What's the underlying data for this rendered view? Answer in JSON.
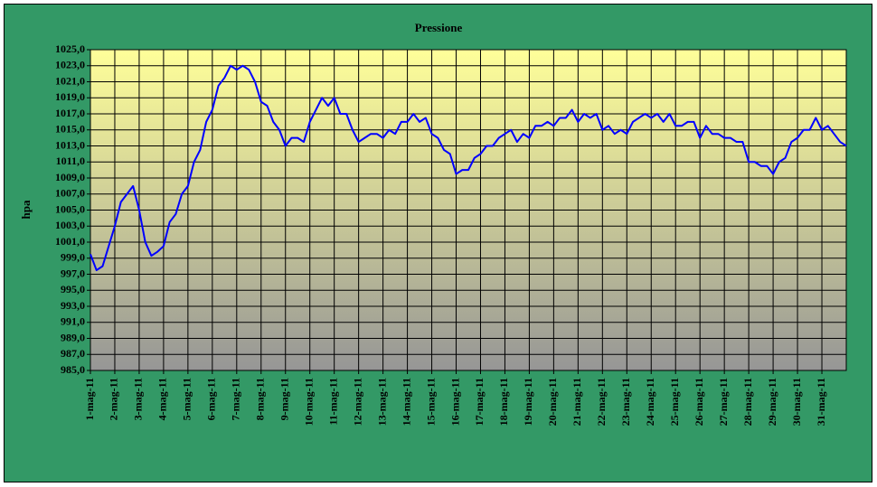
{
  "chart_data": {
    "type": "line",
    "title": "Pressione",
    "y_label": "hpa",
    "x": [
      0,
      0.25,
      0.5,
      0.75,
      1,
      1.25,
      1.5,
      1.75,
      2,
      2.25,
      2.5,
      2.75,
      3,
      3.25,
      3.5,
      3.75,
      4,
      4.25,
      4.5,
      4.75,
      5,
      5.25,
      5.5,
      5.75,
      6,
      6.25,
      6.5,
      6.75,
      7,
      7.25,
      7.5,
      7.75,
      8,
      8.25,
      8.5,
      8.75,
      9,
      9.25,
      9.5,
      9.75,
      10,
      10.25,
      10.5,
      10.75,
      11,
      11.25,
      11.5,
      11.75,
      12,
      12.25,
      12.5,
      12.75,
      13,
      13.25,
      13.5,
      13.75,
      14,
      14.25,
      14.5,
      14.75,
      15,
      15.25,
      15.5,
      15.75,
      16,
      16.25,
      16.5,
      16.75,
      17,
      17.25,
      17.5,
      17.75,
      18,
      18.25,
      18.5,
      18.75,
      19,
      19.25,
      19.5,
      19.75,
      20,
      20.25,
      20.5,
      20.75,
      21,
      21.25,
      21.5,
      21.75,
      22,
      22.25,
      22.5,
      22.75,
      23,
      23.25,
      23.5,
      23.75,
      24,
      24.25,
      24.5,
      24.75,
      25,
      25.25,
      25.5,
      25.75,
      26,
      26.25,
      26.5,
      26.75,
      27,
      27.25,
      27.5,
      27.75,
      28,
      28.25,
      28.5,
      28.75,
      29,
      29.25,
      29.5,
      29.75,
      30,
      30.25,
      30.5,
      30.75,
      31
    ],
    "values": [
      999.5,
      997.5,
      998,
      1000.5,
      1003,
      1006,
      1007,
      1008,
      1005,
      1001,
      999.3,
      999.8,
      1000.5,
      1003.5,
      1004.5,
      1007,
      1008,
      1011,
      1012.5,
      1016,
      1017.5,
      1020.5,
      1021.5,
      1023,
      1022.5,
      1023,
      1022.5,
      1021,
      1018.5,
      1018,
      1016,
      1015,
      1013,
      1014,
      1014,
      1013.5,
      1016,
      1017.5,
      1019,
      1018,
      1019,
      1017,
      1017,
      1015,
      1013.5,
      1014,
      1014.5,
      1014.5,
      1014,
      1015,
      1014.5,
      1016,
      1016,
      1017,
      1016,
      1016.5,
      1014.5,
      1014,
      1012.5,
      1012,
      1009.5,
      1010,
      1010,
      1011.5,
      1012,
      1013,
      1013,
      1014,
      1014.5,
      1015,
      1013.5,
      1014.5,
      1014,
      1015.5,
      1015.5,
      1016,
      1015.5,
      1016.5,
      1016.5,
      1017.5,
      1016,
      1017,
      1016.5,
      1017,
      1015,
      1015.5,
      1014.5,
      1015,
      1014.5,
      1016,
      1016.5,
      1017,
      1016.5,
      1017,
      1016,
      1017,
      1015.5,
      1015.5,
      1016,
      1016,
      1014,
      1015.5,
      1014.5,
      1014.5,
      1014,
      1014,
      1013.5,
      1013.5,
      1011,
      1011,
      1010.5,
      1010.5,
      1009.5,
      1011,
      1011.5,
      1013.5,
      1014,
      1015,
      1015,
      1016.5,
      1015,
      1015.5,
      1014.5,
      1013.5,
      1013
    ],
    "color": "#0000ff",
    "xlim": [
      0,
      31
    ],
    "xticks": [
      {
        "value": 0,
        "label": "1-mag-11"
      },
      {
        "value": 1,
        "label": "2-mag-11"
      },
      {
        "value": 2,
        "label": "3-mag-11"
      },
      {
        "value": 3,
        "label": "4-mag-11"
      },
      {
        "value": 4,
        "label": "5-mag-11"
      },
      {
        "value": 5,
        "label": "6-mag-11"
      },
      {
        "value": 6,
        "label": "7-mag-11"
      },
      {
        "value": 7,
        "label": "8-mag-11"
      },
      {
        "value": 8,
        "label": "9-mag-11"
      },
      {
        "value": 9,
        "label": "10-mag-11"
      },
      {
        "value": 10,
        "label": "11-mag-11"
      },
      {
        "value": 11,
        "label": "12-mag-11"
      },
      {
        "value": 12,
        "label": "13-mag-11"
      },
      {
        "value": 13,
        "label": "14-mag-11"
      },
      {
        "value": 14,
        "label": "15-mag-11"
      },
      {
        "value": 15,
        "label": "16-mag-11"
      },
      {
        "value": 16,
        "label": "17-mag-11"
      },
      {
        "value": 17,
        "label": "18-mag-11"
      },
      {
        "value": 18,
        "label": "19-mag-11"
      },
      {
        "value": 19,
        "label": "20-mag-11"
      },
      {
        "value": 20,
        "label": "21-mag-11"
      },
      {
        "value": 21,
        "label": "22-mag-11"
      },
      {
        "value": 22,
        "label": "23-mag-11"
      },
      {
        "value": 23,
        "label": "24-mag-11"
      },
      {
        "value": 24,
        "label": "25-mag-11"
      },
      {
        "value": 25,
        "label": "26-mag-11"
      },
      {
        "value": 26,
        "label": "27-mag-11"
      },
      {
        "value": 27,
        "label": "28-mag-11"
      },
      {
        "value": 28,
        "label": "29-mag-11"
      },
      {
        "value": 29,
        "label": "30-mag-11"
      },
      {
        "value": 30,
        "label": "31-mag-11"
      }
    ],
    "ylim": [
      985,
      1025
    ],
    "yticks": [
      {
        "value": 985,
        "label": "985,0"
      },
      {
        "value": 987,
        "label": "987,0"
      },
      {
        "value": 989,
        "label": "989,0"
      },
      {
        "value": 991,
        "label": "991,0"
      },
      {
        "value": 993,
        "label": "993,0"
      },
      {
        "value": 995,
        "label": "995,0"
      },
      {
        "value": 997,
        "label": "997,0"
      },
      {
        "value": 999,
        "label": "999,0"
      },
      {
        "value": 1001,
        "label": "1001,0"
      },
      {
        "value": 1003,
        "label": "1003,0"
      },
      {
        "value": 1005,
        "label": "1005,0"
      },
      {
        "value": 1007,
        "label": "1007,0"
      },
      {
        "value": 1009,
        "label": "1009,0"
      },
      {
        "value": 1011,
        "label": "1011,0"
      },
      {
        "value": 1013,
        "label": "1013,0"
      },
      {
        "value": 1015,
        "label": "1015,0"
      },
      {
        "value": 1017,
        "label": "1017,0"
      },
      {
        "value": 1019,
        "label": "1019,0"
      },
      {
        "value": 1021,
        "label": "1021,0"
      },
      {
        "value": 1023,
        "label": "1023,0"
      },
      {
        "value": 1025,
        "label": "1025,0"
      }
    ],
    "grid": true
  }
}
